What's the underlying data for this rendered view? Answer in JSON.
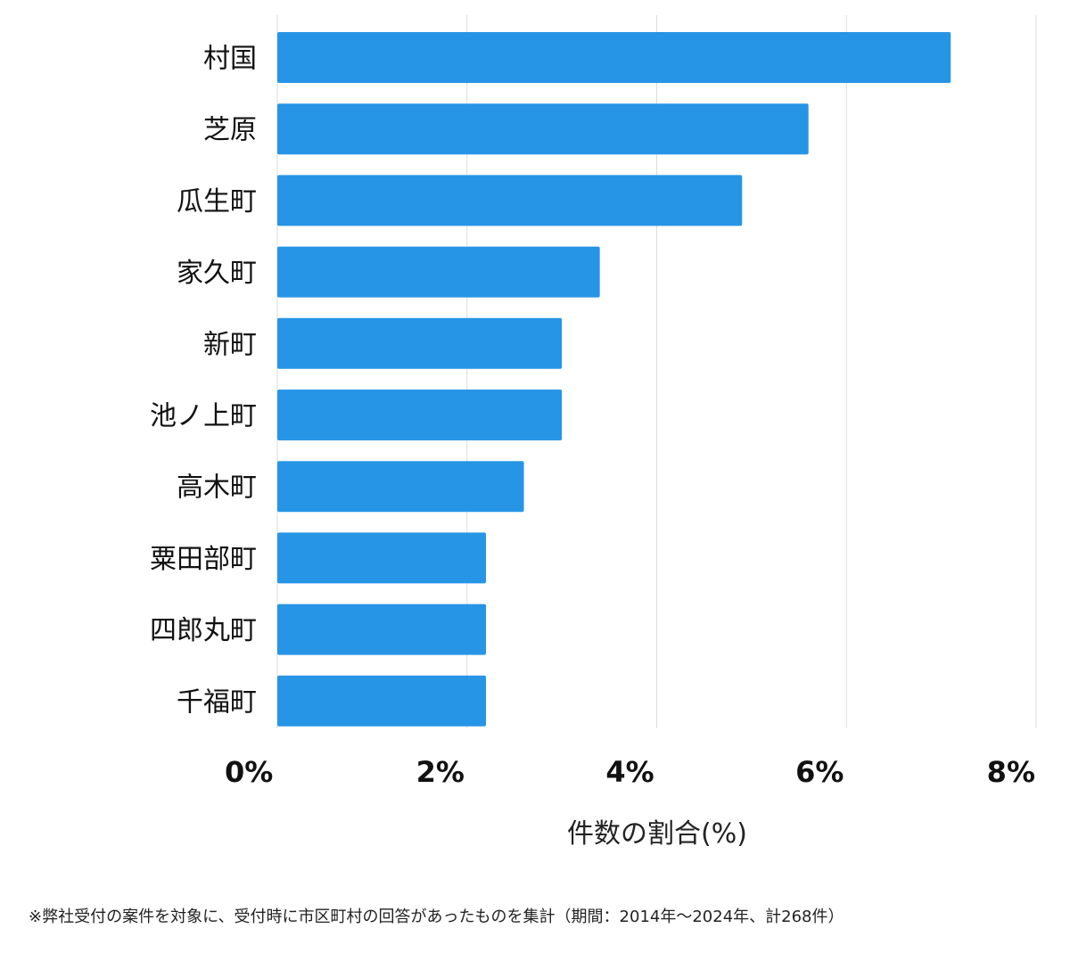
{
  "chart_data": {
    "type": "bar",
    "orientation": "horizontal",
    "categories": [
      "村国",
      "芝原",
      "瓜生町",
      "家久町",
      "新町",
      "池ノ上町",
      "高木町",
      "粟田部町",
      "四郎丸町",
      "千福町"
    ],
    "values": [
      7.1,
      5.6,
      4.9,
      3.4,
      3.0,
      3.0,
      2.6,
      2.2,
      2.2,
      2.2
    ],
    "xlim": [
      0,
      8
    ],
    "xticks": [
      0,
      2,
      4,
      6,
      8
    ],
    "xtick_labels": [
      "0%",
      "2%",
      "4%",
      "6%",
      "8%"
    ],
    "xlabel": "件数の割合(%)",
    "grid": true,
    "bar_color": "#2795e5"
  },
  "footnote": "※弊社受付の案件を対象に、受付時に市区町村の回答があったものを集計（期間：2014年～2024年、計268件）"
}
